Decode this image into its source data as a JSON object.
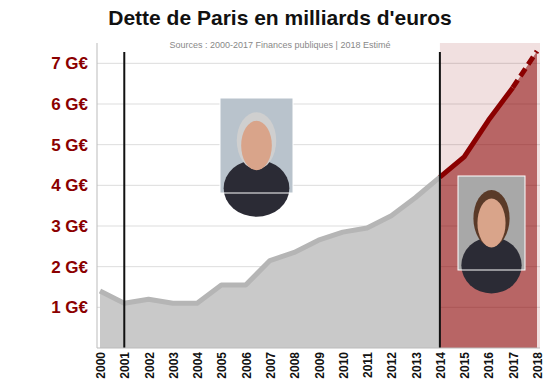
{
  "chart_data": {
    "type": "area",
    "title": "Dette de Paris en milliards d'euros",
    "subtitle": "Sources : 2000-2017 Finances publiques | 2018 Estimé",
    "categories": [
      "2000",
      "2001",
      "2002",
      "2003",
      "2004",
      "2005",
      "2006",
      "2007",
      "2008",
      "2009",
      "2010",
      "2011",
      "2012",
      "2013",
      "2014",
      "2015",
      "2016",
      "2017",
      "2018"
    ],
    "values": [
      1.4,
      1.1,
      1.2,
      1.1,
      1.1,
      1.55,
      1.55,
      2.15,
      2.35,
      2.65,
      2.85,
      2.95,
      3.25,
      3.7,
      4.2,
      4.7,
      5.6,
      6.4,
      7.3
    ],
    "estimated": [
      false,
      false,
      false,
      false,
      false,
      false,
      false,
      false,
      false,
      false,
      false,
      false,
      false,
      false,
      false,
      false,
      false,
      false,
      true
    ],
    "vertical_lines": [
      "2001",
      "2014"
    ],
    "color": "#8b0000",
    "ylim": [
      0,
      7.5
    ],
    "yticks": [
      {
        "value": 1,
        "label": "1 G€"
      },
      {
        "value": 2,
        "label": "2 G€"
      },
      {
        "value": 3,
        "label": "3 G€"
      },
      {
        "value": 4,
        "label": "4 G€"
      },
      {
        "value": 5,
        "label": "5 G€"
      },
      {
        "value": 6,
        "label": "6 G€"
      },
      {
        "value": 7,
        "label": "7 G€"
      }
    ],
    "grid": true
  }
}
